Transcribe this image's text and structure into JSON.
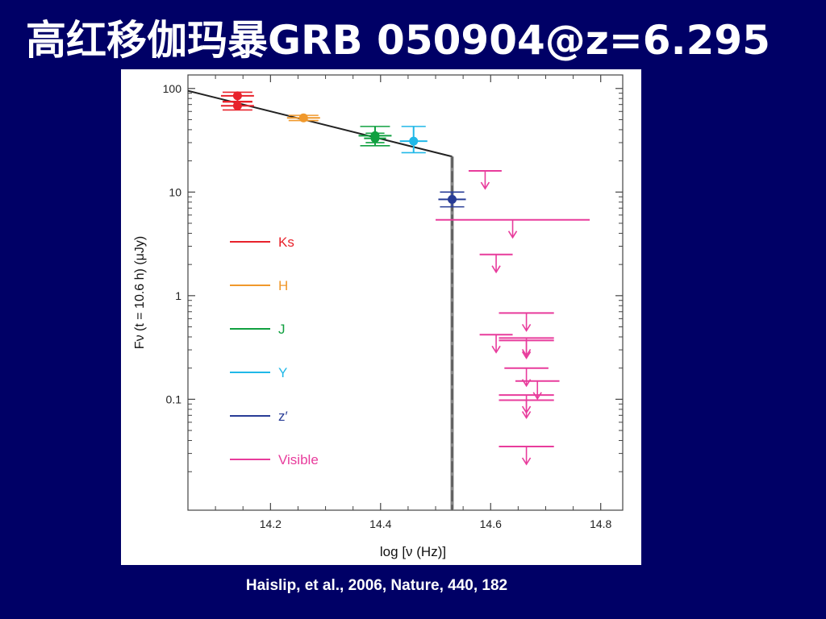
{
  "slide": {
    "title": "高红移伽玛暴GRB 050904@z=6.295",
    "citation": "Haislip, et al., 2006, Nature, 440, 182"
  },
  "chart_data": {
    "type": "scatter",
    "xlabel": "log [ν (Hz)]",
    "ylabel": "Fν (t = 10.6 h) (μJy)",
    "xlim": [
      14.05,
      14.84
    ],
    "ylim": [
      0.0085,
      135
    ],
    "yscale": "log",
    "xticks": [
      14.2,
      14.4,
      14.6,
      14.8
    ],
    "xtick_labels": [
      "14.2",
      "14.4",
      "14.6",
      "14.8"
    ],
    "yticks": [
      100,
      10,
      1,
      0.1
    ],
    "ytick_labels": [
      "100",
      "10",
      "1",
      "0.1"
    ],
    "grid": false,
    "legend_placement": "left",
    "legend": [
      {
        "label": "Ks",
        "color": "#e8222b"
      },
      {
        "label": "H",
        "color": "#f0982b"
      },
      {
        "label": "J",
        "color": "#10a040"
      },
      {
        "label": "Y",
        "color": "#20b8e8"
      },
      {
        "label": "z′",
        "color": "#283c96"
      },
      {
        "label": "Visible",
        "color": "#e83c9c"
      }
    ],
    "model_line": {
      "color": "#222222",
      "points": [
        [
          14.05,
          95
        ],
        [
          14.53,
          22
        ],
        [
          14.53,
          0.0085
        ]
      ]
    },
    "detections": [
      {
        "band": "Ks",
        "color": "#e8222b",
        "x": 14.14,
        "y": 85,
        "xerr": 0.03,
        "yerr": [
          75,
          92
        ]
      },
      {
        "band": "Ks",
        "color": "#e8222b",
        "x": 14.14,
        "y": 68,
        "xerr": 0.03,
        "yerr": [
          62,
          74
        ]
      },
      {
        "band": "H",
        "color": "#f0982b",
        "x": 14.26,
        "y": 52,
        "xerr": 0.03,
        "yerr": [
          49,
          55
        ]
      },
      {
        "band": "J",
        "color": "#10a040",
        "x": 14.39,
        "y": 35,
        "xerr": 0.03,
        "yerr": [
          28,
          43
        ]
      },
      {
        "band": "J",
        "color": "#10a040",
        "x": 14.39,
        "y": 33,
        "xerr": 0.02,
        "yerr": [
          30,
          37
        ]
      },
      {
        "band": "Y",
        "color": "#20b8e8",
        "x": 14.46,
        "y": 31,
        "xerr": 0.025,
        "yerr": [
          24,
          43
        ]
      },
      {
        "band": "z′",
        "color": "#283c96",
        "x": 14.53,
        "y": 8.5,
        "xerr": 0.025,
        "yerr": [
          7.2,
          10
        ]
      }
    ],
    "upper_limits": [
      {
        "band": "Visible",
        "color": "#e83c9c",
        "x": 14.59,
        "y": 16,
        "xerr": 0.03
      },
      {
        "band": "Visible",
        "color": "#e83c9c",
        "x": 14.64,
        "y": 5.4,
        "xerr": 0.14
      },
      {
        "band": "Visible",
        "color": "#e83c9c",
        "x": 14.61,
        "y": 2.5,
        "xerr": 0.03
      },
      {
        "band": "Visible",
        "color": "#e83c9c",
        "x": 14.665,
        "y": 0.68,
        "xerr": 0.05
      },
      {
        "band": "Visible",
        "color": "#e83c9c",
        "x": 14.61,
        "y": 0.42,
        "xerr": 0.03
      },
      {
        "band": "Visible",
        "color": "#e83c9c",
        "x": 14.665,
        "y": 0.39,
        "xerr": 0.05
      },
      {
        "band": "Visible",
        "color": "#e83c9c",
        "x": 14.665,
        "y": 0.37,
        "xerr": 0.05
      },
      {
        "band": "Visible",
        "color": "#e83c9c",
        "x": 14.665,
        "y": 0.2,
        "xerr": 0.04
      },
      {
        "band": "Visible",
        "color": "#e83c9c",
        "x": 14.685,
        "y": 0.15,
        "xerr": 0.04
      },
      {
        "band": "Visible",
        "color": "#e83c9c",
        "x": 14.665,
        "y": 0.11,
        "xerr": 0.05
      },
      {
        "band": "Visible",
        "color": "#e83c9c",
        "x": 14.665,
        "y": 0.098,
        "xerr": 0.05
      },
      {
        "band": "Visible",
        "color": "#e83c9c",
        "x": 14.665,
        "y": 0.035,
        "xerr": 0.05
      }
    ]
  }
}
